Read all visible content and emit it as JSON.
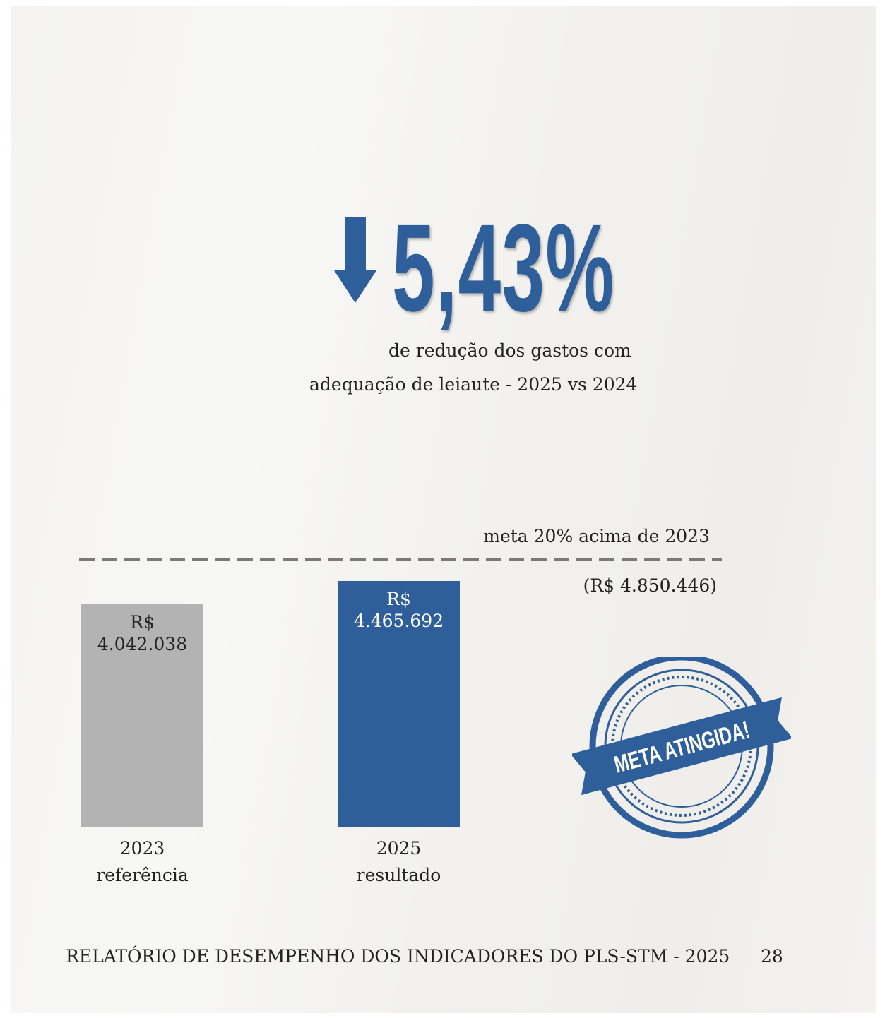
{
  "headline": "5,43%",
  "subtitle": [
    "de redução dos gastos com",
    "adequação de leiaute - 2025 vs 2024"
  ],
  "chart_data": {
    "type": "bar",
    "categories": [
      "2023",
      "2025"
    ],
    "category_notes": [
      "referência",
      "resultado"
    ],
    "values": [
      4042038,
      4465692
    ],
    "value_labels": [
      "R$ 4.042.038",
      "R$ 4.465.692"
    ],
    "colors": [
      "#b3b3b3",
      "#2e5f9a"
    ],
    "label_colors": [
      "#222222",
      "#ffffff"
    ],
    "target": {
      "label": "meta 20% acima de 2023",
      "value": 4850446,
      "value_label": "(R$ 4.850.446)"
    }
  },
  "stamp": "META ATINGIDA!",
  "footer": {
    "title": "RELATÓRIO DE DESEMPENHO DOS INDICADORES DO PLS-STM - 2025",
    "page": "28"
  }
}
